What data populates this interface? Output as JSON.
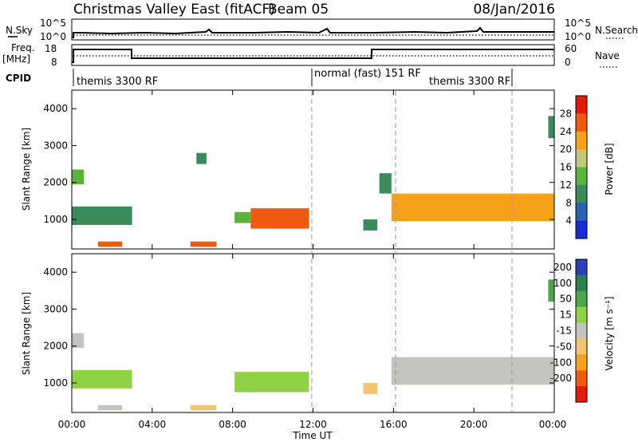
{
  "header": {
    "station": "Christmas Valley East (fitACF)",
    "beam": "Beam 05",
    "date": "08/Jan/2016"
  },
  "panels": {
    "nsky": {
      "label": "N.Sky",
      "top_tick": "10^5",
      "bottom_tick": "10^0"
    },
    "nsearch": {
      "label": "N.Search",
      "top_tick": "10^5",
      "bottom_tick": "10^0"
    },
    "freq": {
      "label_line1": "Freq.",
      "label_line2": "[MHz]",
      "top_tick": "18",
      "bottom_tick": "8"
    },
    "nave": {
      "label": "Nave",
      "top_tick": "60",
      "bottom_tick": "0"
    },
    "cpid": {
      "label": "CPID",
      "segments": [
        "themis 3300 RF",
        "normal (fast) 151 RF",
        "themis 3300 RF"
      ]
    }
  },
  "colors": {
    "power": [
      "#1a2bd6",
      "#2b5fb0",
      "#3a8a5c",
      "#59b23a",
      "#c2c87a",
      "#f5a21a",
      "#f05a10",
      "#e41a0c"
    ],
    "velocity": [
      "#e41a0c",
      "#f05a10",
      "#f5a21a",
      "#f2c470",
      "#c4c4be",
      "#8fd245",
      "#4ea64a",
      "#2e7f4e",
      "#2a3fb8"
    ]
  },
  "chart_data": [
    {
      "type": "heatmap",
      "title": "Power",
      "xlabel": "Time UT",
      "ylabel": "Slant Range [km]",
      "x_ticks": [
        "00:00",
        "04:00",
        "08:00",
        "12:00",
        "16:00",
        "20:00",
        "00:00"
      ],
      "x_range_hours": [
        0,
        24
      ],
      "y_ticks": [
        "1000",
        "2000",
        "3000",
        "4000"
      ],
      "ylim": [
        200,
        4500
      ],
      "colorbar": {
        "label": "Power [dB]",
        "ticks": [
          "4",
          "8",
          "12",
          "16",
          "20",
          "24",
          "28"
        ],
        "range": [
          0,
          32
        ]
      },
      "regions": [
        {
          "t0": 0.0,
          "t1": 3.0,
          "r0": 850,
          "r1": 1350,
          "value": 10
        },
        {
          "t0": 0.0,
          "t1": 0.6,
          "r0": 1950,
          "r1": 2350,
          "value": 12
        },
        {
          "t0": 1.3,
          "t1": 2.5,
          "r0": 260,
          "r1": 400,
          "value": 26
        },
        {
          "t0": 5.9,
          "t1": 7.2,
          "r0": 260,
          "r1": 400,
          "value": 26
        },
        {
          "t0": 6.2,
          "t1": 6.7,
          "r0": 2500,
          "r1": 2800,
          "value": 8
        },
        {
          "t0": 8.1,
          "t1": 8.9,
          "r0": 900,
          "r1": 1200,
          "value": 14
        },
        {
          "t0": 8.9,
          "t1": 11.8,
          "r0": 750,
          "r1": 1300,
          "value": 24
        },
        {
          "t0": 15.3,
          "t1": 15.9,
          "r0": 1700,
          "r1": 2250,
          "value": 10
        },
        {
          "t0": 14.5,
          "t1": 15.2,
          "r0": 700,
          "r1": 1000,
          "value": 8
        },
        {
          "t0": 15.9,
          "t1": 24.0,
          "r0": 950,
          "r1": 1700,
          "value": 20
        },
        {
          "t0": 23.7,
          "t1": 24.0,
          "r0": 3200,
          "r1": 3800,
          "value": 10
        }
      ]
    },
    {
      "type": "heatmap",
      "title": "Velocity",
      "xlabel": "Time UT",
      "ylabel": "Slant Range [km]",
      "x_ticks": [
        "00:00",
        "04:00",
        "08:00",
        "12:00",
        "16:00",
        "20:00",
        "00:00"
      ],
      "x_range_hours": [
        0,
        24
      ],
      "y_ticks": [
        "1000",
        "2000",
        "3000",
        "4000"
      ],
      "ylim": [
        200,
        4500
      ],
      "colorbar": {
        "label": "Velocity [m s⁻¹]",
        "ticks": [
          "200",
          "100",
          "50",
          "15",
          "-15",
          "-50",
          "-100",
          "-200"
        ],
        "range": [
          -250,
          250
        ]
      },
      "regions": [
        {
          "t0": 0.0,
          "t1": 3.0,
          "r0": 850,
          "r1": 1350,
          "value": 30
        },
        {
          "t0": 0.0,
          "t1": 0.6,
          "r0": 1950,
          "r1": 2350,
          "value": 0
        },
        {
          "t0": 1.3,
          "t1": 2.5,
          "r0": 260,
          "r1": 400,
          "value": 0
        },
        {
          "t0": 5.9,
          "t1": 7.2,
          "r0": 260,
          "r1": 400,
          "value": -30
        },
        {
          "t0": 8.1,
          "t1": 11.8,
          "r0": 750,
          "r1": 1300,
          "value": 40
        },
        {
          "t0": 14.5,
          "t1": 15.2,
          "r0": 700,
          "r1": 1000,
          "value": -40
        },
        {
          "t0": 15.9,
          "t1": 24.0,
          "r0": 950,
          "r1": 1700,
          "value": 0
        },
        {
          "t0": 23.7,
          "t1": 24.0,
          "r0": 3200,
          "r1": 3800,
          "value": 120
        }
      ]
    }
  ]
}
